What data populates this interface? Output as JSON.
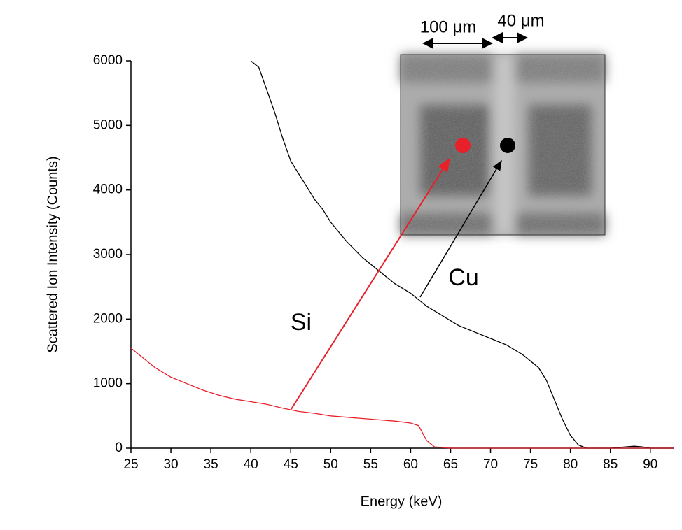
{
  "chart_data": {
    "type": "line",
    "x_label": "Energy (keV)",
    "y_label": "Scattered Ion Intensity (Counts)",
    "xlim": [
      25,
      93
    ],
    "xticks": [
      25,
      30,
      35,
      40,
      45,
      50,
      55,
      60,
      65,
      70,
      75,
      80,
      85,
      90
    ],
    "ylim": [
      0,
      6000
    ],
    "yticks": [
      0,
      1000,
      2000,
      3000,
      4000,
      5000,
      6000
    ],
    "grid": false,
    "series": [
      {
        "name": "Cu",
        "color": "#000000",
        "x": [
          40,
          41,
          42,
          43,
          44,
          45,
          46,
          47,
          48,
          49,
          50,
          52,
          54,
          56,
          58,
          60,
          62,
          64,
          66,
          68,
          70,
          72,
          74,
          76,
          77,
          78,
          79,
          80,
          81,
          82,
          85,
          88,
          89,
          90,
          93
        ],
        "values": [
          6000,
          5900,
          5550,
          5200,
          4800,
          4450,
          4250,
          4050,
          3850,
          3700,
          3500,
          3200,
          2950,
          2750,
          2550,
          2400,
          2200,
          2050,
          1900,
          1800,
          1700,
          1600,
          1450,
          1250,
          1050,
          750,
          450,
          200,
          50,
          0,
          0,
          30,
          20,
          0,
          0
        ]
      },
      {
        "name": "Si",
        "color": "#e8202a",
        "x": [
          25,
          26,
          28,
          30,
          32,
          34,
          36,
          38,
          40,
          42,
          44,
          46,
          48,
          50,
          52,
          54,
          56,
          58,
          60,
          61,
          62,
          63,
          65,
          93
        ],
        "values": [
          1550,
          1450,
          1250,
          1100,
          1000,
          900,
          820,
          760,
          720,
          680,
          620,
          570,
          540,
          500,
          480,
          460,
          440,
          420,
          390,
          350,
          120,
          20,
          0,
          0
        ]
      }
    ],
    "annotations": [
      {
        "text": "Si",
        "color": "#e8202a"
      },
      {
        "text": "Cu",
        "color": "#000000"
      }
    ],
    "inset_scale_labels": [
      "100 μm",
      "40 μm"
    ]
  }
}
